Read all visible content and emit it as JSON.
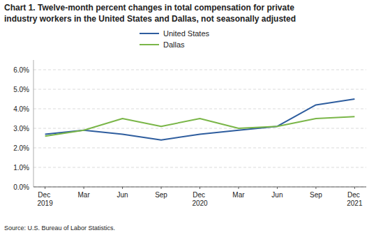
{
  "chart_data": {
    "type": "line",
    "title": "Chart 1. Twelve-month percent changes in total compensation for private",
    "subtitle": "industry workers in the United States and Dallas, not seasonally adjusted",
    "source": "Source: U.S. Bureau of Labor Statistics.",
    "categories": [
      "Dec 2019",
      "Mar",
      "Jun",
      "Sep",
      "Dec 2020",
      "Mar",
      "Jun",
      "Sep",
      "Dec 2021"
    ],
    "series": [
      {
        "name": "United States",
        "color": "#2E5D9E",
        "values": [
          2.7,
          2.9,
          2.7,
          2.4,
          2.7,
          2.9,
          3.1,
          4.2,
          4.5
        ]
      },
      {
        "name": "Dallas",
        "color": "#7AB648",
        "values": [
          2.6,
          2.9,
          3.5,
          3.1,
          3.5,
          3.0,
          3.1,
          3.5,
          3.6
        ]
      }
    ],
    "ylim": [
      0,
      6.5
    ],
    "yticks": [
      {
        "value": 0,
        "label": "0.0%"
      },
      {
        "value": 1,
        "label": "1.0%"
      },
      {
        "value": 2,
        "label": "2.0%"
      },
      {
        "value": 3,
        "label": "3.0%"
      },
      {
        "value": 4,
        "label": "4.0%"
      },
      {
        "value": 5,
        "label": "5.0%"
      },
      {
        "value": 6,
        "label": "6.0%"
      }
    ],
    "grid": true,
    "legend": "top"
  }
}
